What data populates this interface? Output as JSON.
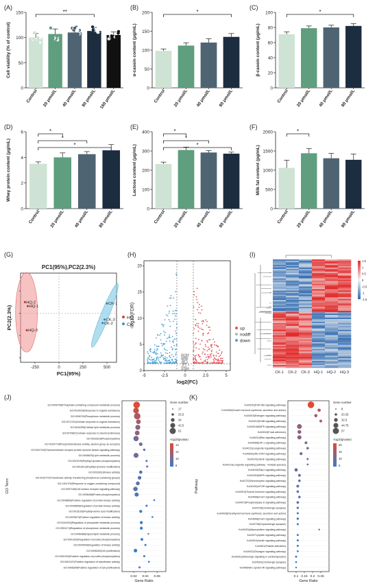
{
  "figure": {
    "panel_labels": [
      "(A)",
      "(B)",
      "(C)",
      "(D)",
      "(E)",
      "(F)",
      "(G)",
      "(H)",
      "(I)",
      "(J)",
      "(K)"
    ]
  },
  "colors": {
    "control": "#cfe3d5",
    "dose20": "#5f9e7e",
    "dose40": "#4f6473",
    "dose80": "#1c2d3f",
    "dose160": "#111111",
    "ellipse_hq": "#f29a9a",
    "ellipse_ck": "#8fd0e8",
    "volcano_up": "#e7515b",
    "volcano_nodiff": "#b5b5b5",
    "volcano_down": "#4aa3d6",
    "heat_high": "#e22b2b",
    "heat_low": "#2f6ab0",
    "heat_mid": "#f4f4f4",
    "dot_high": "#e24a33",
    "dot_low": "#3a7bc8"
  },
  "chart_data": [
    {
      "panel": "A",
      "type": "bar",
      "ylabel": "Cell viability (% of control)",
      "categories": [
        "Control",
        "20 μmol/L",
        "40 μmol/L",
        "80 μmol/L",
        "160 μmol/L"
      ],
      "values": [
        100,
        107,
        110,
        113,
        105
      ],
      "errors": [
        8,
        10,
        9,
        7,
        6
      ],
      "ylim": [
        0,
        150
      ],
      "yticks": [
        0,
        50,
        100,
        150
      ],
      "significance": [
        {
          "from": 0,
          "to": 3,
          "label": "**"
        }
      ]
    },
    {
      "panel": "B",
      "type": "bar",
      "ylabel": "α-casein content (μg/mL)",
      "categories": [
        "Control",
        "20 μmol/L",
        "40 μmol/L",
        "80 μmol/L"
      ],
      "values": [
        98,
        112,
        120,
        135
      ],
      "errors": [
        5,
        7,
        10,
        9
      ],
      "ylim": [
        0,
        200
      ],
      "yticks": [
        0,
        50,
        100,
        150,
        200
      ],
      "significance": [
        {
          "from": 0,
          "to": 3,
          "label": "*"
        }
      ]
    },
    {
      "panel": "C",
      "type": "bar",
      "ylabel": "β-casein content (μg/mL)",
      "categories": [
        "Control",
        "20 μmol/L",
        "40 μmol/L",
        "80 μmol/L"
      ],
      "values": [
        71,
        79,
        80,
        82
      ],
      "errors": [
        3,
        3,
        3,
        3
      ],
      "ylim": [
        0,
        100
      ],
      "yticks": [
        0,
        20,
        40,
        60,
        80,
        100
      ],
      "significance": [
        {
          "from": 0,
          "to": 3,
          "label": "*"
        }
      ]
    },
    {
      "panel": "D",
      "type": "bar",
      "ylabel": "Whey protein content (μg/mL)",
      "categories": [
        "Control",
        "20 μmol/L",
        "40 μmol/L",
        "80 μmol/L"
      ],
      "values": [
        3.5,
        4.0,
        4.25,
        4.55
      ],
      "errors": [
        0.15,
        0.35,
        0.2,
        0.45
      ],
      "ylim": [
        0,
        6
      ],
      "yticks": [
        0,
        2,
        4,
        6
      ],
      "significance": [
        {
          "from": 0,
          "to": 1,
          "label": "*"
        },
        {
          "from": 0,
          "to": 2,
          "label": "*"
        },
        {
          "from": 0,
          "to": 3,
          "label": "*"
        }
      ]
    },
    {
      "panel": "E",
      "type": "bar",
      "ylabel": "Lactose content (μg/mL)",
      "categories": [
        "Control",
        "20 μmol/L",
        "40 μmol/L",
        "80 μmol/L"
      ],
      "values": [
        232,
        305,
        292,
        286
      ],
      "errors": [
        10,
        15,
        10,
        8
      ],
      "ylim": [
        0,
        400
      ],
      "yticks": [
        0,
        100,
        200,
        300,
        400
      ],
      "significance": [
        {
          "from": 0,
          "to": 1,
          "label": "*"
        },
        {
          "from": 0,
          "to": 2,
          "label": "*"
        },
        {
          "from": 0,
          "to": 3,
          "label": "*"
        }
      ]
    },
    {
      "panel": "F",
      "type": "bar",
      "ylabel": "Milk fat content (pg/mL)",
      "categories": [
        "Control",
        "20 μmol/L",
        "40 μmol/L",
        "80 μmol/L"
      ],
      "values": [
        1060,
        1440,
        1310,
        1270
      ],
      "errors": [
        200,
        120,
        130,
        150
      ],
      "ylim": [
        0,
        2000
      ],
      "yticks": [
        0,
        500,
        1000,
        1500,
        2000
      ],
      "significance": [
        {
          "from": 0,
          "to": 1,
          "label": "*"
        }
      ]
    },
    {
      "panel": "G",
      "type": "scatter",
      "title": "PC1(95%),PC2(2.3%)",
      "xlabel": "PC1(95%)",
      "ylabel": "PC2(2.3%)",
      "xlim": [
        -400,
        600
      ],
      "ylim": [
        -110,
        90
      ],
      "xticks": [
        -250,
        0,
        250,
        500
      ],
      "yticks": [
        -100,
        -50,
        0,
        50
      ],
      "legend_position": "right",
      "series": [
        {
          "name": "HQ",
          "points": [
            {
              "label": "HQ-2",
              "x": -355,
              "y": 25
            },
            {
              "label": "HQ-1",
              "x": -325,
              "y": 16
            },
            {
              "label": "HQ-3",
              "x": -335,
              "y": -38
            }
          ]
        },
        {
          "name": "CK",
          "points": [
            {
              "label": "CK-1",
              "x": 500,
              "y": 22
            },
            {
              "label": "CK-3",
              "x": 475,
              "y": -14
            },
            {
              "label": "CK-2",
              "x": 455,
              "y": -22
            }
          ]
        }
      ]
    },
    {
      "panel": "H",
      "type": "scatter",
      "xlabel": "log2(FC)",
      "ylabel": "-log10(FDR)",
      "xlim": [
        -5,
        5.5
      ],
      "ylim": [
        0,
        21
      ],
      "xticks": [
        -5,
        -2.5,
        0,
        2.5,
        5
      ],
      "yticks": [
        0,
        5,
        10,
        15,
        20
      ],
      "legend": [
        "up",
        "nodiff",
        "down"
      ],
      "legend_position": "right"
    },
    {
      "panel": "I",
      "type": "heatmap",
      "columns": [
        "CK-1",
        "CK-2",
        "CK-3",
        "HQ-1",
        "HQ-2",
        "HQ-3"
      ],
      "scale_ticks": [
        "1.5",
        "1",
        "0.5",
        "0",
        "-0.5",
        "-1",
        "-1.5"
      ]
    },
    {
      "panel": "J",
      "type": "scatter",
      "xlabel": "Gene Ratio",
      "ylabel": "GO Term",
      "xlim": [
        0,
        0.075
      ],
      "xticks": [
        "0.02",
        "0.04",
        "0.06"
      ],
      "size_legend_title": "Gene number",
      "size_legend": [
        "17",
        "25.5",
        "34",
        "42.5",
        "51"
      ],
      "color_legend_title": "-log10(pvalue)",
      "color_legend": [
        "14",
        "12",
        "10",
        "8"
      ],
      "terms": [
        {
          "label": "GO:0006796(Phosphate-containing compound metabolic process)",
          "ratio": 0.025,
          "n": 51,
          "p": 14
        },
        {
          "label": "GO:0010033(Response to organic substance)",
          "ratio": 0.024,
          "n": 45,
          "p": 13
        },
        {
          "label": "GO:0006793(Phosphorus metabolic process)",
          "ratio": 0.026,
          "n": 50,
          "p": 12
        },
        {
          "label": "GO:0071310(Cellular response to organic substance)",
          "ratio": 0.028,
          "n": 38,
          "p": 12
        },
        {
          "label": "GO:0044255(Cellular lipid metabolic process)",
          "ratio": 0.027,
          "n": 40,
          "p": 11
        },
        {
          "label": "GO:0070887(Cellular response to chemical stimulus)",
          "ratio": 0.026,
          "n": 38,
          "p": 11
        },
        {
          "label": "GO:0016310(Phosphorylation)",
          "ratio": 0.024,
          "n": 42,
          "p": 10
        },
        {
          "label": "GO:0016773(Phosphotransferase activity, alcohol group as acceptor)",
          "ratio": 0.032,
          "n": 30,
          "p": 10
        },
        {
          "label": "GO:0007169(Transmembrane receptor protein tyrosine kinase signaling pathway)",
          "ratio": 0.038,
          "n": 22,
          "p": 9
        },
        {
          "label": "GO:0006629(Lipid metabolic process)",
          "ratio": 0.024,
          "n": 40,
          "p": 10
        },
        {
          "label": "GO:0019199(Peptidyl-tyrosine phosphorylation)",
          "ratio": 0.042,
          "n": 20,
          "p": 9
        },
        {
          "label": "GO:0018212(Peptidyl-tyrosine modification)",
          "ratio": 0.043,
          "n": 20,
          "p": 9
        },
        {
          "label": "GO:0016301(Kinase activity)",
          "ratio": 0.032,
          "n": 28,
          "p": 9
        },
        {
          "label": "GO:0016772(Transferase activity, transferring phosphorus-containing groups)",
          "ratio": 0.03,
          "n": 30,
          "p": 9
        },
        {
          "label": "GO:1901700(Response to oxygen-containing compound)",
          "ratio": 0.027,
          "n": 32,
          "p": 9
        },
        {
          "label": "GO:0007166(Cell surface receptor signaling pathway)",
          "ratio": 0.023,
          "n": 36,
          "p": 9
        },
        {
          "label": "GO:0006468(Protein phosphorylation)",
          "ratio": 0.025,
          "n": 34,
          "p": 9
        },
        {
          "label": "GO:0045860(Positive regulation of protein kinase activity)",
          "ratio": 0.055,
          "n": 18,
          "p": 8
        },
        {
          "label": "GO:0045859(Regulation of protein kinase activity)",
          "ratio": 0.042,
          "n": 20,
          "p": 8
        },
        {
          "label": "GO:0018193(Peptidyl-amino acid modification)",
          "ratio": 0.032,
          "n": 26,
          "p": 8
        },
        {
          "label": "GO:0033674(Positive regulation of kinase activity)",
          "ratio": 0.052,
          "n": 18,
          "p": 8
        },
        {
          "label": "GO:0019220(Regulation of phosphate metabolic process)",
          "ratio": 0.033,
          "n": 26,
          "p": 8
        },
        {
          "label": "GO:0051174(Regulation of phosphorus metabolic process)",
          "ratio": 0.033,
          "n": 26,
          "p": 8
        },
        {
          "label": "GO:0046486(Glycerolipid metabolic process)",
          "ratio": 0.045,
          "n": 17,
          "p": 8
        },
        {
          "label": "GO:0001932(Regulation of protein phosphorylation)",
          "ratio": 0.034,
          "n": 24,
          "p": 8
        },
        {
          "label": "GO:0043549(Regulation of kinase activity)",
          "ratio": 0.04,
          "n": 20,
          "p": 8
        },
        {
          "label": "GO:0008283(Cell proliferation)",
          "ratio": 0.023,
          "n": 30,
          "p": 8
        },
        {
          "label": "GO:0001934(Positive regulation of protein phosphorylation)",
          "ratio": 0.038,
          "n": 20,
          "p": 8
        },
        {
          "label": "GO:0051347(Positive regulation of transferase activity)",
          "ratio": 0.046,
          "n": 18,
          "p": 8
        },
        {
          "label": "GO:0008284(Positive regulation of cell proliferation)",
          "ratio": 0.03,
          "n": 20,
          "p": 8
        }
      ]
    },
    {
      "panel": "K",
      "type": "scatter",
      "xlabel": "Gene Ratio",
      "ylabel": "Pathway",
      "xlim": [
        0.05,
        0.3
      ],
      "xticks": [
        "0.1",
        "0.15",
        "0.2",
        "0.25"
      ],
      "size_legend_title": "Gene number",
      "size_legend": [
        "8",
        "20.25",
        "32.5",
        "44.75",
        "57"
      ],
      "color_legend_title": "-log10(pvalue)",
      "color_legend": [
        "20",
        "15",
        "10",
        "5"
      ],
      "terms": [
        {
          "label": "Ko04151(PI3K-Akt signaling pathway)",
          "ratio": 0.19,
          "n": 57,
          "p": 20
        },
        {
          "label": "Ko04935(Growth hormone synthesis, secretion and action)",
          "ratio": 0.24,
          "n": 25,
          "p": 16
        },
        {
          "label": "Ko04915(Estrogen signaling pathway)",
          "ratio": 0.22,
          "n": 25,
          "p": 15
        },
        {
          "label": "Ko04012(ErbB signaling pathway)",
          "ratio": 0.25,
          "n": 20,
          "p": 15
        },
        {
          "label": "Ko04010(MAPK signaling pathway)",
          "ratio": 0.12,
          "n": 40,
          "p": 13
        },
        {
          "label": "Ko04510(Focal adhesion)",
          "ratio": 0.12,
          "n": 30,
          "p": 12
        },
        {
          "label": "Ko04014(Ras signaling pathway)",
          "ratio": 0.12,
          "n": 34,
          "p": 12
        },
        {
          "label": "Ko04066(HIF-1 signaling pathway)",
          "ratio": 0.16,
          "n": 20,
          "p": 11
        },
        {
          "label": "Ko04211(Longevity regulating pathway)",
          "ratio": 0.17,
          "n": 18,
          "p": 11
        },
        {
          "label": "Ko04630(JAK-STAT signaling pathway)",
          "ratio": 0.13,
          "n": 22,
          "p": 10
        },
        {
          "label": "Ko04370(VEGF signaling pathway)",
          "ratio": 0.17,
          "n": 14,
          "p": 10
        },
        {
          "label": "Ko04213(Longevity regulating pathway - multiple species)",
          "ratio": 0.17,
          "n": 12,
          "p": 9
        },
        {
          "label": "Ko04015(Rap1 signaling pathway)",
          "ratio": 0.1,
          "n": 26,
          "p": 9
        },
        {
          "label": "Ko04152(AMPK signaling pathway)",
          "ratio": 0.12,
          "n": 20,
          "p": 9
        },
        {
          "label": "Ko04722(Neurotrophin signaling pathway)",
          "ratio": 0.12,
          "n": 18,
          "p": 9
        },
        {
          "label": "Ko04150(mTOR signaling pathway)",
          "ratio": 0.11,
          "n": 20,
          "p": 9
        },
        {
          "label": "Ko04919(Thyroid hormone signaling pathway)",
          "ratio": 0.11,
          "n": 18,
          "p": 8
        },
        {
          "label": "Ko04068(FoxO signaling pathway)",
          "ratio": 0.12,
          "n": 18,
          "p": 8
        },
        {
          "label": "Ko04072(Phospholipase D signaling pathway)",
          "ratio": 0.11,
          "n": 18,
          "p": 8
        },
        {
          "label": "Ko04725(Cholinergic synapse)",
          "ratio": 0.11,
          "n": 16,
          "p": 8
        },
        {
          "label": "Ko04928(Parathyroid hormone synthesis, secretion and action)",
          "ratio": 0.11,
          "n": 14,
          "p": 7
        },
        {
          "label": "Ko04068(FoxO signaling pathway)",
          "ratio": 0.11,
          "n": 16,
          "p": 7
        },
        {
          "label": "Ko04728(Dopaminergic synapse)",
          "ratio": 0.11,
          "n": 14,
          "p": 7
        },
        {
          "label": "Ko04920(Adipocytokine signaling pathway)",
          "ratio": 0.24,
          "n": 10,
          "p": 7
        },
        {
          "label": "Ko04371(Apelin signaling pathway)",
          "ratio": 0.11,
          "n": 14,
          "p": 6
        },
        {
          "label": "Ko04910(Insulin signaling pathway)",
          "ratio": 0.11,
          "n": 14,
          "p": 6
        },
        {
          "label": "Ko04611(Platelet activation)",
          "ratio": 0.11,
          "n": 14,
          "p": 6
        },
        {
          "label": "Ko04922(Glucagon signaling pathway)",
          "ratio": 0.11,
          "n": 12,
          "p": 6
        },
        {
          "label": "Ko04261(Adrenergic signaling in cardiomyocytes)",
          "ratio": 0.1,
          "n": 14,
          "p": 6
        },
        {
          "label": "Ko04261(Cholinergic synapse)",
          "ratio": 0.1,
          "n": 12,
          "p": 5
        },
        {
          "label": "Ko04664(Fc epsilon RI signaling pathway)",
          "ratio": 0.1,
          "n": 10,
          "p": 5
        }
      ]
    }
  ]
}
